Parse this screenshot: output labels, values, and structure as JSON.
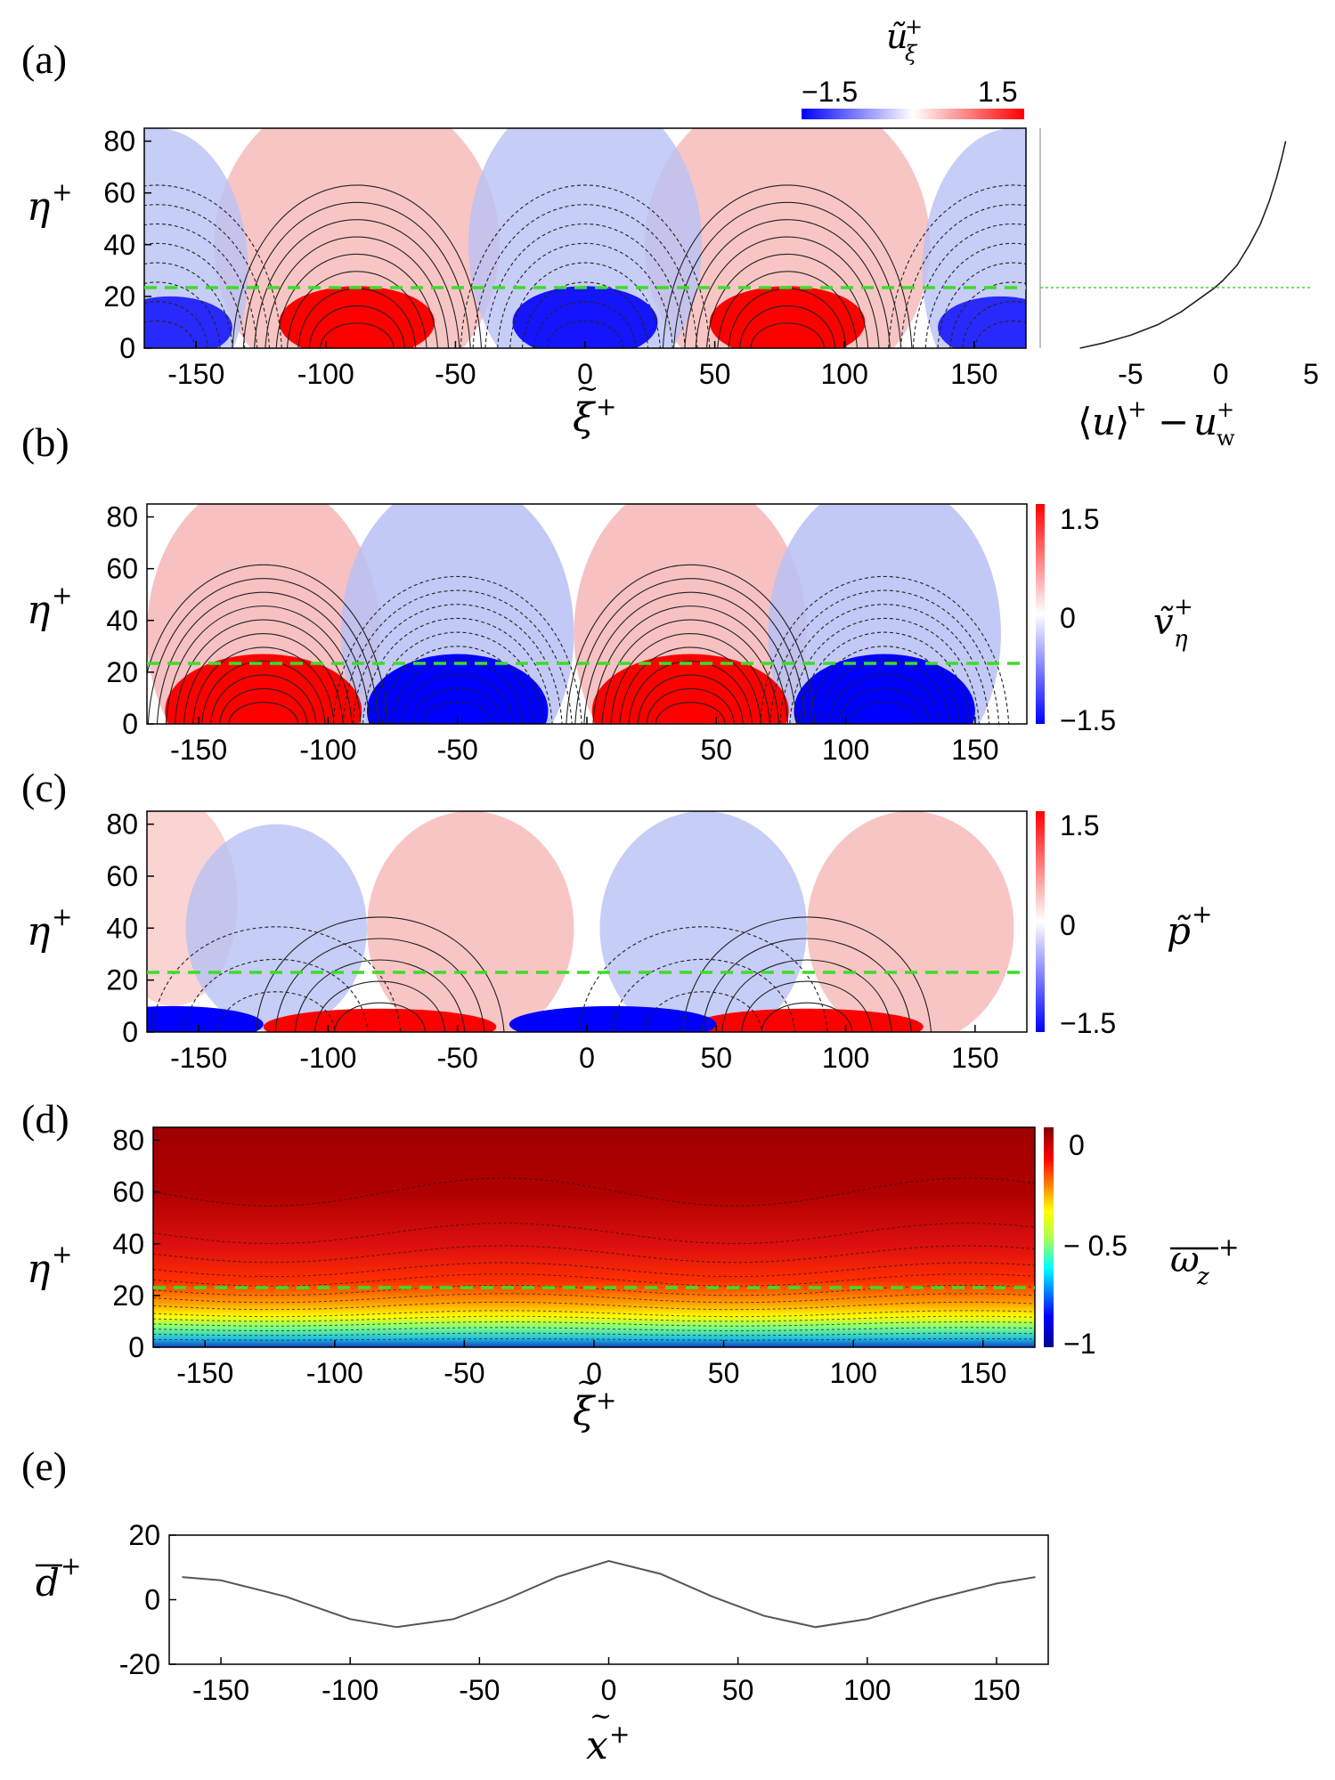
{
  "chart_data": [
    {
      "id": "a",
      "type": "heatmap",
      "panel_label": "(a)",
      "quantity": "ũ_ξ⁺ (phase-averaged streamwise velocity fluctuation)",
      "colorbar": {
        "label": "ũ",
        "sub": "ξ",
        "sup": "+",
        "min": -1.5,
        "max": 1.5,
        "min_label": "−1.5",
        "max_label": "1.5",
        "orientation": "horizontal",
        "colormap": "blue-white-red"
      },
      "xlim": [
        -170,
        170
      ],
      "ylim": [
        0,
        85
      ],
      "xticks": [
        -150,
        -100,
        -50,
        0,
        50,
        100,
        150
      ],
      "yticks": [
        0,
        20,
        40,
        60,
        80
      ],
      "xlabel": "ξ̃⁺",
      "ylabel": "η⁺",
      "positive_cores": [
        -88,
        78
      ],
      "negative_cores": [
        0,
        -165,
        165
      ],
      "reference_line_eta": 23,
      "contours": "solid positive, dashed negative"
    },
    {
      "id": "a-profile",
      "type": "line",
      "xlim": [
        -10,
        5
      ],
      "ylim": [
        0,
        85
      ],
      "xticks": [
        -5,
        0,
        5
      ],
      "xlabel": "⟨u⟩⁺ − u_w⁺",
      "x": [
        -7.8,
        -6.5,
        -5,
        -3.5,
        -2.2,
        -1.2,
        -0.4,
        0.1,
        0.9,
        1.6,
        2.2,
        2.7,
        3.1,
        3.4,
        3.6
      ],
      "y": [
        0,
        2,
        5,
        9,
        14,
        19,
        23,
        26,
        32,
        40,
        48,
        57,
        66,
        74,
        80
      ],
      "reference_line_eta": 23
    },
    {
      "id": "b",
      "type": "heatmap",
      "panel_label": "(b)",
      "quantity": "ṽ_η⁺",
      "colorbar": {
        "label": "ṽ",
        "sub": "η",
        "sup": "+",
        "min": -1.5,
        "max": 1.5,
        "min_label": "−1.5",
        "mid_label": "0",
        "max_label": "1.5",
        "orientation": "vertical",
        "colormap": "blue-white-red"
      },
      "xlim": [
        -170,
        170
      ],
      "ylim": [
        0,
        85
      ],
      "xticks": [
        -150,
        -100,
        -50,
        0,
        50,
        100,
        150
      ],
      "yticks": [
        0,
        20,
        40,
        60,
        80
      ],
      "ylabel": "η⁺",
      "positive_cores": [
        -125,
        40
      ],
      "negative_cores": [
        -50,
        115
      ],
      "reference_line_eta": 23
    },
    {
      "id": "c",
      "type": "heatmap",
      "panel_label": "(c)",
      "quantity": "p̃⁺",
      "colorbar": {
        "label": "p̃",
        "sup": "+",
        "min": -1.5,
        "max": 1.5,
        "min_label": "−1.5",
        "mid_label": "0",
        "max_label": "1.5",
        "orientation": "vertical",
        "colormap": "blue-white-red"
      },
      "xlim": [
        -170,
        170
      ],
      "ylim": [
        0,
        85
      ],
      "xticks": [
        -150,
        -100,
        -50,
        0,
        50,
        100,
        150
      ],
      "yticks": [
        0,
        20,
        40,
        60,
        80
      ],
      "ylabel": "η⁺",
      "positive_near_wall": [
        -80,
        85
      ],
      "negative_near_wall": [
        -160,
        10
      ],
      "reference_line_eta": 23
    },
    {
      "id": "d",
      "type": "heatmap",
      "panel_label": "(d)",
      "quantity": "mean spanwise vorticity ω_z⁺ (overbar)",
      "colorbar": {
        "label": "ω",
        "sub": "z",
        "sup": "+",
        "min": -1,
        "max": 0,
        "min_label": "−1",
        "mid_label": "− 0.5",
        "max_label": "0",
        "orientation": "vertical",
        "colormap": "jet"
      },
      "xlim": [
        -170,
        170
      ],
      "ylim": [
        0,
        85
      ],
      "xticks": [
        -150,
        -100,
        -50,
        0,
        50,
        100,
        150
      ],
      "yticks": [
        0,
        20,
        40,
        60,
        80
      ],
      "xlabel": "ξ̃⁺",
      "ylabel": "η⁺",
      "reference_line_eta": 23
    },
    {
      "id": "e",
      "type": "line",
      "panel_label": "(e)",
      "quantity": "wall displacement d̄⁺",
      "xlim": [
        -170,
        170
      ],
      "ylim": [
        -20,
        20
      ],
      "xticks": [
        -150,
        -100,
        -50,
        0,
        50,
        100,
        150
      ],
      "yticks": [
        -20,
        0,
        20
      ],
      "xlabel": "x̃⁺",
      "ylabel": "d̄⁺",
      "x": [
        -165,
        -150,
        -125,
        -100,
        -82,
        -60,
        -40,
        -20,
        0,
        20,
        40,
        60,
        80,
        100,
        125,
        150,
        165
      ],
      "y": [
        7,
        6,
        1,
        -6,
        -8.5,
        -6,
        0,
        7,
        12,
        8,
        1,
        -5,
        -8.5,
        -6,
        0,
        5,
        7
      ]
    }
  ]
}
